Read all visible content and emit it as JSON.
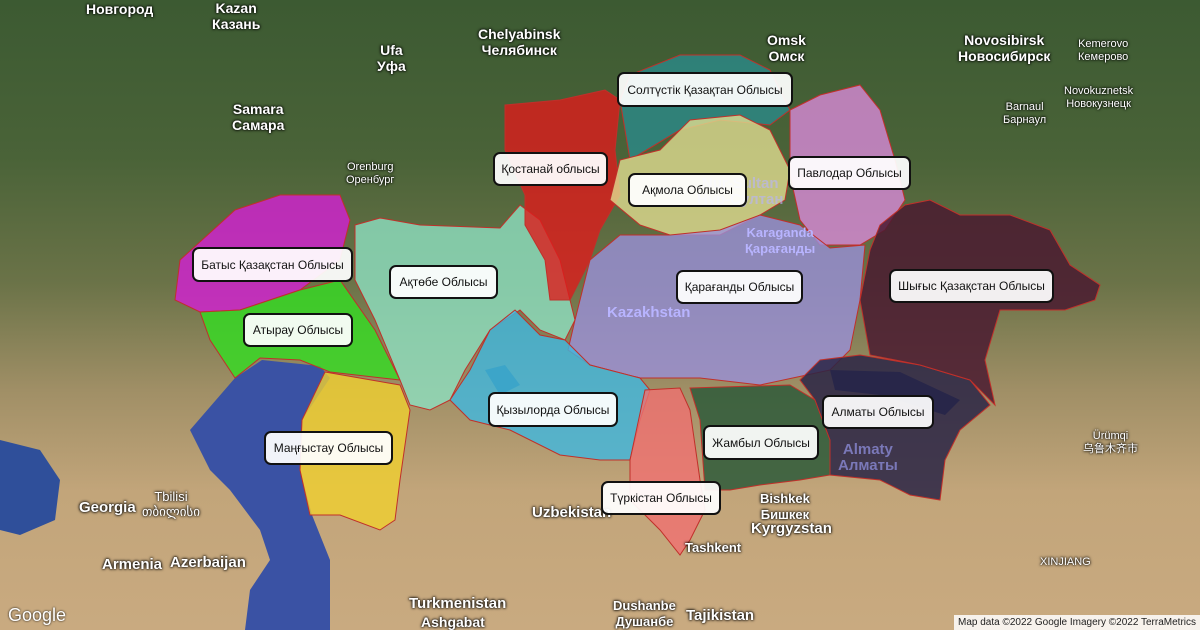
{
  "regions": [
    {
      "name": "Батыс Қазақстан Облысы",
      "color": "#d41fd4"
    },
    {
      "name": "Атырау Облысы",
      "color": "#33dd22"
    },
    {
      "name": "Маңғыстау Облысы",
      "color": "#f0d030"
    },
    {
      "name": "Ақтөбе Облысы",
      "color": "#8de0c0"
    },
    {
      "name": "Қостанай облысы",
      "color": "#dd1c1c"
    },
    {
      "name": "Солтүстік Қазақтан Облысы",
      "color": "#2a8a8a"
    },
    {
      "name": "Ақмола Облысы",
      "color": "#e0dc90"
    },
    {
      "name": "Павлодар Облысы",
      "color": "#d88ad8"
    },
    {
      "name": "Қарағанды Облысы",
      "color": "#9a90d8"
    },
    {
      "name": "Қызылорда Облысы",
      "color": "#40b8e0"
    },
    {
      "name": "Түркістан Облысы",
      "color": "#f07070"
    },
    {
      "name": "Жамбыл Облысы",
      "color": "#2e5a3a"
    },
    {
      "name": "Алматы Облысы",
      "color": "#2a2545"
    },
    {
      "name": "Шығыс Қазақстан Облысы",
      "color": "#4a1a30"
    }
  ],
  "places": {
    "novgorod": "Новгород",
    "kazan": "Kazan\nКазань",
    "ufa": "Ufa\nУфа",
    "chelyabinsk": "Chelyabinsk\nЧелябинск",
    "samara": "Samara\nСамара",
    "orenburg": "Orenburg\nОренбург",
    "omsk": "Omsk\nОмск",
    "novosibirsk": "Novosibirsk\nНовосибирск",
    "kemerovo": "Kemerovo\nКемерово",
    "novokuznetsk": "Novokuznetsk\nНовокузнецк",
    "barnaul": "Barnaul\nБарнаул",
    "nursultan": "Nur-Sultan\nНур-Султан",
    "karaganda": "Karaganda\nҚарағанды",
    "kazakhstan": "Kazakhstan",
    "almaty": "Almaty\nАлматы",
    "urumqi": "Ürümqi\n乌鲁木齐市",
    "georgia": "Georgia",
    "tbilisi": "Tbilisi\nთბილისი",
    "armenia": "Armenia",
    "azerbaijan": "Azerbaijan",
    "uzbekistan": "Uzbekistan",
    "turkmenistan": "Turkmenistan",
    "ashgabat": "Ashgabat",
    "bishkek": "Bishkek\nБишкек",
    "kyrgyzstan": "Kyrgyzstan",
    "tashkent": "Tashkent",
    "dushanbe": "Dushanbe\nДушанбе",
    "tajikistan": "Tajikistan",
    "xinjiang": "XINJIANG"
  },
  "logo": "Google",
  "attribution": "Map data ©2022 Google Imagery ©2022 TerraMetrics"
}
